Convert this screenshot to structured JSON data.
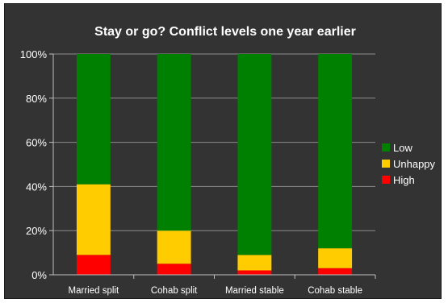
{
  "chart_data": {
    "type": "bar",
    "stacked": true,
    "title": "Stay or go? Conflict levels one year earlier",
    "xlabel": "",
    "ylabel": "",
    "categories": [
      "Married split",
      "Cohab split",
      "Married stable",
      "Cohab stable"
    ],
    "series": [
      {
        "name": "High",
        "color": "#ff0000",
        "values": [
          9,
          5,
          2,
          3
        ]
      },
      {
        "name": "Unhappy",
        "color": "#ffcc00",
        "values": [
          32,
          15,
          7,
          9
        ]
      },
      {
        "name": "Low",
        "color": "#008000",
        "values": [
          59,
          80,
          91,
          88
        ]
      }
    ],
    "ylim": [
      0,
      100
    ],
    "yticks": [
      "0%",
      "20%",
      "40%",
      "60%",
      "80%",
      "100%"
    ],
    "grid": true,
    "legend_position": "right",
    "legend_order": [
      "Low",
      "Unhappy",
      "High"
    ],
    "colors": {
      "background": "#333333",
      "text": "#ffffff",
      "gridline": "#8c8c8c",
      "axis": "#bfbfbf"
    }
  }
}
